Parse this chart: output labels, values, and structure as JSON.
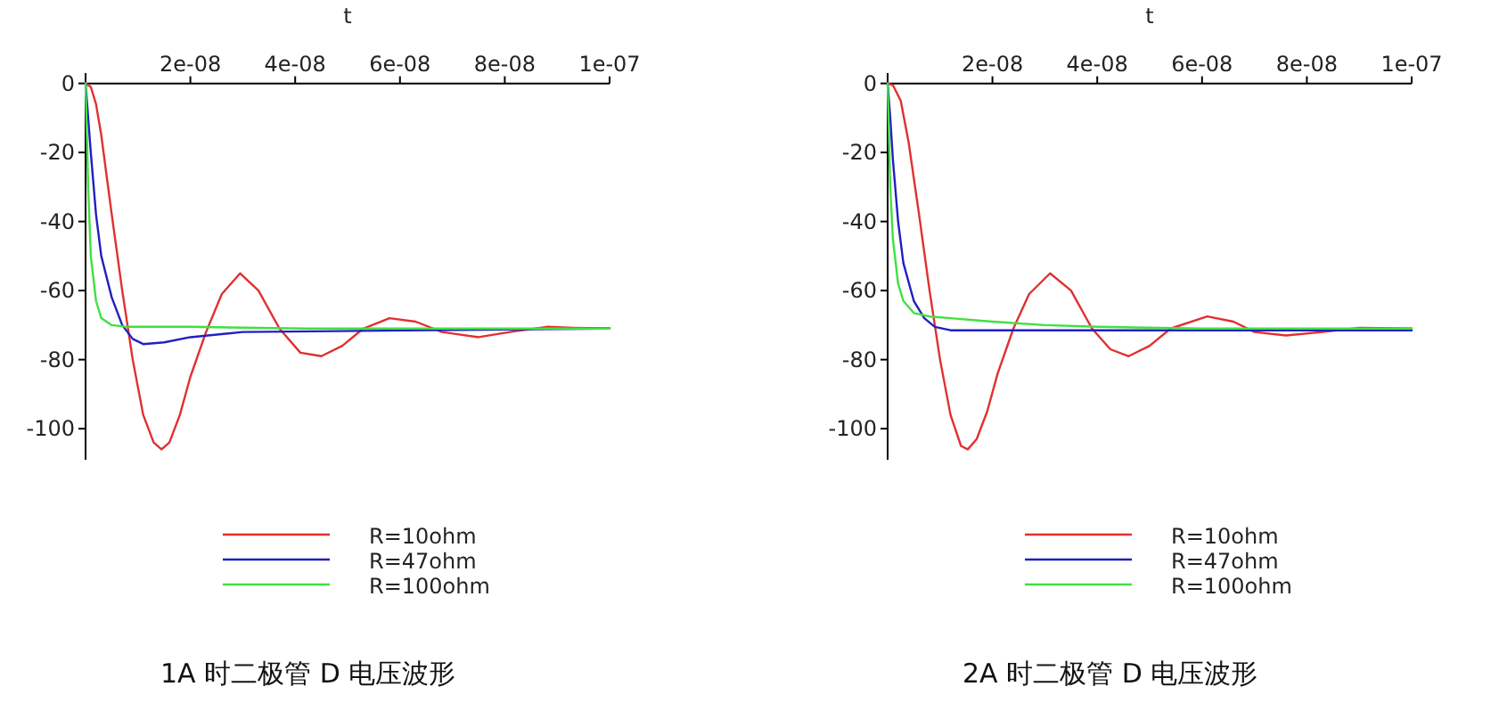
{
  "chart_data": [
    {
      "type": "line",
      "title": "1A 时二极管 D 电压波形",
      "xlabel": "t",
      "xlim": [
        0,
        1e-07
      ],
      "ylim": [
        -109,
        3
      ],
      "xticks": [
        {
          "value": 2e-08,
          "label": "2e-08"
        },
        {
          "value": 4e-08,
          "label": "4e-08"
        },
        {
          "value": 6e-08,
          "label": "6e-08"
        },
        {
          "value": 8e-08,
          "label": "8e-08"
        },
        {
          "value": 1e-07,
          "label": "1e-07"
        }
      ],
      "yticks": [
        0,
        -20,
        -40,
        -60,
        -80,
        -100
      ],
      "grid": false,
      "legend": "bottom",
      "line_style": "solid",
      "marker": "none",
      "series": [
        {
          "name": "R=10ohm",
          "color": "#e03030",
          "x": [
            0,
            1e-09,
            2e-09,
            3e-09,
            5e-09,
            7e-09,
            9e-09,
            1.1e-08,
            1.3e-08,
            1.45e-08,
            1.6e-08,
            1.8e-08,
            2e-08,
            2.3e-08,
            2.6e-08,
            2.95e-08,
            3.3e-08,
            3.7e-08,
            4.1e-08,
            4.5e-08,
            4.9e-08,
            5.3e-08,
            5.8e-08,
            6.3e-08,
            6.8e-08,
            7.5e-08,
            8.1e-08,
            8.8e-08,
            9.3e-08,
            1e-07
          ],
          "values": [
            0,
            -1,
            -6,
            -15,
            -38,
            -60,
            -80,
            -96,
            -104,
            -106,
            -104,
            -96,
            -85,
            -72,
            -61,
            -55,
            -60,
            -71,
            -78,
            -79,
            -76,
            -71,
            -68,
            -69,
            -72,
            -73.5,
            -72,
            -70.5,
            -70.8,
            -71
          ]
        },
        {
          "name": "R=47ohm",
          "color": "#2020c0",
          "x": [
            0,
            1e-09,
            2e-09,
            3e-09,
            5e-09,
            7e-09,
            9e-09,
            1.1e-08,
            1.5e-08,
            2e-08,
            3e-08,
            1e-07
          ],
          "values": [
            0,
            -20,
            -38,
            -50,
            -62,
            -70,
            -74,
            -75.5,
            -75,
            -73.5,
            -72,
            -71
          ]
        },
        {
          "name": "R=100ohm",
          "color": "#40e040",
          "x": [
            0,
            5e-10,
            1e-09,
            2e-09,
            3e-09,
            5e-09,
            8e-09,
            2e-08,
            4.2e-08,
            1e-07
          ],
          "values": [
            0,
            -30,
            -50,
            -63,
            -68,
            -70,
            -70.5,
            -70.5,
            -71,
            -71
          ]
        }
      ]
    },
    {
      "type": "line",
      "title": "2A 时二极管 D 电压波形",
      "xlabel": "t",
      "xlim": [
        0,
        1e-07
      ],
      "ylim": [
        -109,
        3
      ],
      "xticks": [
        {
          "value": 2e-08,
          "label": "2e-08"
        },
        {
          "value": 4e-08,
          "label": "4e-08"
        },
        {
          "value": 6e-08,
          "label": "6e-08"
        },
        {
          "value": 8e-08,
          "label": "8e-08"
        },
        {
          "value": 1e-07,
          "label": "1e-07"
        }
      ],
      "yticks": [
        0,
        -20,
        -40,
        -60,
        -80,
        -100
      ],
      "grid": false,
      "legend": "bottom",
      "line_style": "solid",
      "marker": "none",
      "series": [
        {
          "name": "R=10ohm",
          "color": "#e03030",
          "x": [
            0,
            1e-09,
            2.5e-09,
            4e-09,
            6e-09,
            8e-09,
            1e-08,
            1.2e-08,
            1.4e-08,
            1.53e-08,
            1.7e-08,
            1.9e-08,
            2.1e-08,
            2.4e-08,
            2.7e-08,
            3.1e-08,
            3.5e-08,
            3.9e-08,
            4.25e-08,
            4.6e-08,
            5e-08,
            5.4e-08,
            6.1e-08,
            6.6e-08,
            7e-08,
            7.6e-08,
            8.3e-08,
            9e-08,
            1e-07
          ],
          "values": [
            0,
            -0.5,
            -5,
            -17,
            -38,
            -60,
            -80,
            -96,
            -105,
            -106,
            -103,
            -95,
            -84,
            -71,
            -61,
            -55,
            -60,
            -71,
            -77,
            -79,
            -76,
            -71,
            -67.5,
            -69,
            -72,
            -73,
            -72,
            -70.8,
            -71
          ]
        },
        {
          "name": "R=47ohm",
          "color": "#2020c0",
          "x": [
            0,
            5e-10,
            1e-09,
            2e-09,
            3e-09,
            5e-09,
            7e-09,
            9e-09,
            1.2e-08,
            2e-08,
            1e-07
          ],
          "values": [
            0,
            -10,
            -22,
            -40,
            -52,
            -63,
            -68,
            -70.5,
            -71.5,
            -71.5,
            -71.5
          ]
        },
        {
          "name": "R=100ohm",
          "color": "#40e040",
          "x": [
            0,
            5e-10,
            1e-09,
            2e-09,
            3e-09,
            5e-09,
            8e-09,
            1.2e-08,
            2e-08,
            3e-08,
            4e-08,
            6e-08,
            1e-07
          ],
          "values": [
            0,
            -30,
            -45,
            -58,
            -63,
            -66.5,
            -67.5,
            -68,
            -69,
            -70,
            -70.5,
            -71,
            -71
          ]
        }
      ]
    }
  ]
}
